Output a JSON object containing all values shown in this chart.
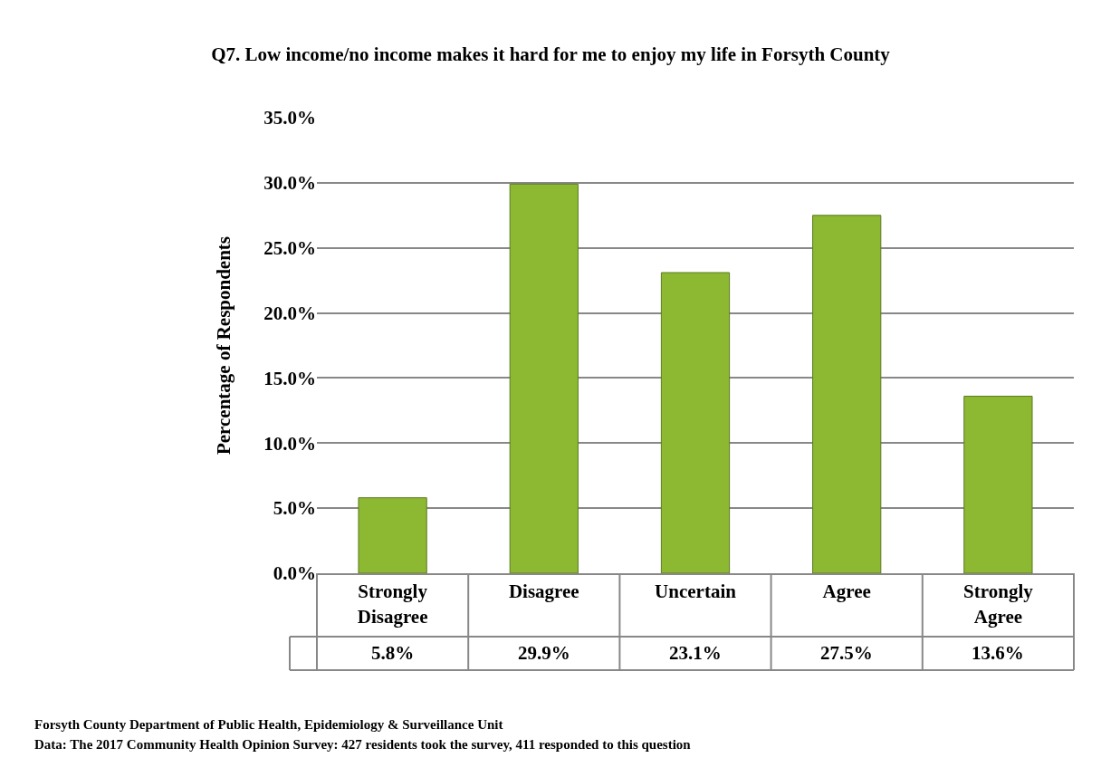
{
  "chart_data": {
    "type": "bar",
    "title": "Q7. Low income/no income makes it hard for me to enjoy my life in Forsyth County",
    "ylabel": "Percentage of Respondents",
    "categories": [
      "Strongly Disagree",
      "Disagree",
      "Uncertain",
      "Agree",
      "Strongly Agree"
    ],
    "values": [
      5.8,
      29.9,
      23.1,
      27.5,
      13.6
    ],
    "value_labels": [
      "5.8%",
      "29.9%",
      "23.1%",
      "27.5%",
      "13.6%"
    ],
    "color": "#8db832",
    "ylim": [
      0,
      35
    ],
    "yticks": [
      {
        "value": 0,
        "label": "0.0%"
      },
      {
        "value": 5,
        "label": "5.0%"
      },
      {
        "value": 10,
        "label": "10.0%"
      },
      {
        "value": 15,
        "label": "15.0%"
      },
      {
        "value": 20,
        "label": "20.0%"
      },
      {
        "value": 25,
        "label": "25.0%"
      },
      {
        "value": 30,
        "label": "30.0%"
      },
      {
        "value": 35,
        "label": "35.0%"
      }
    ],
    "grid": "y",
    "annotations": [
      "Forsyth County Department of Public Health, Epidemiology & Surveillance Unit",
      "Data: The 2017 Community Health Opinion Survey: 427 residents took the survey, 411 responded to this question"
    ]
  }
}
